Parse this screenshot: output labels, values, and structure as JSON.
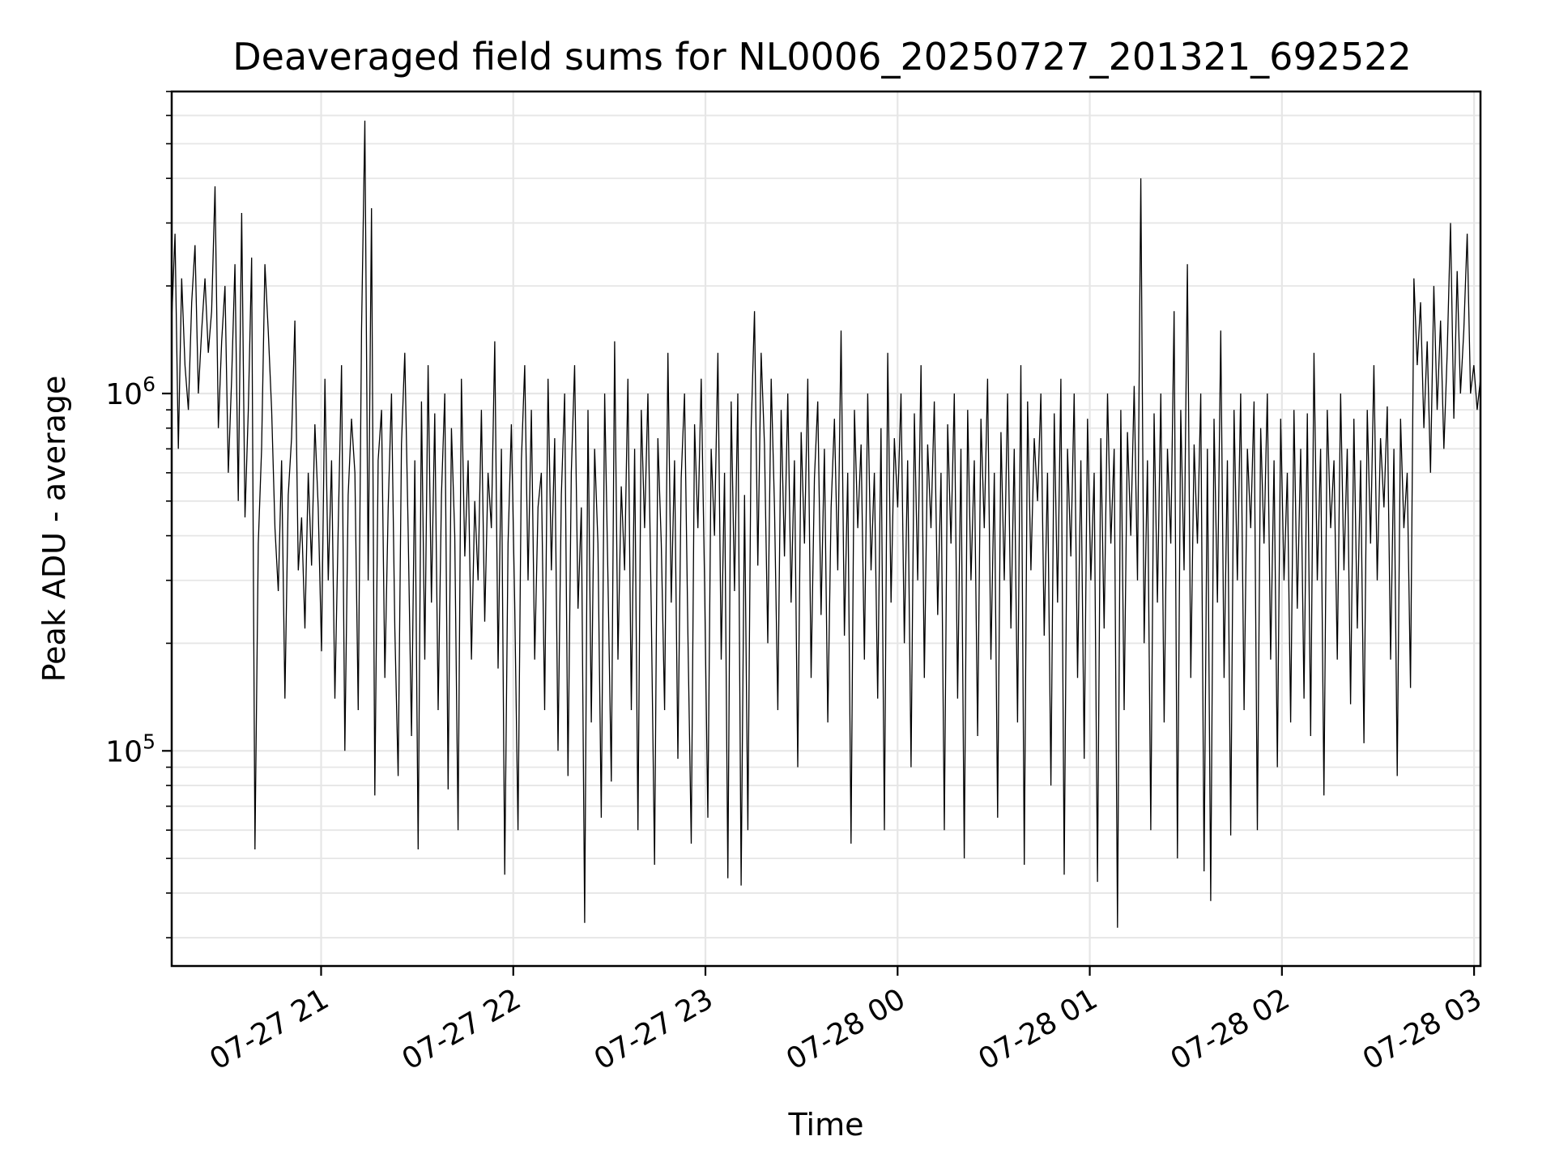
{
  "chart_data": {
    "type": "line",
    "title": "Deaveraged field sums for NL0006_20250727_201321_692522",
    "xlabel": "Time",
    "ylabel": "Peak ADU - average",
    "x_range": [
      "2025-07-27 20:13:21",
      "2025-07-28 03:02:00"
    ],
    "ylim": [
      25000,
      7000000
    ],
    "y_scale": "log",
    "grid": true,
    "legend": "none",
    "line_color": "#000000",
    "x_ticks": [
      {
        "value": "2025-07-27 21:00",
        "label": "07-27 21"
      },
      {
        "value": "2025-07-27 22:00",
        "label": "07-27 22"
      },
      {
        "value": "2025-07-27 23:00",
        "label": "07-27 23"
      },
      {
        "value": "2025-07-28 00:00",
        "label": "07-28 00"
      },
      {
        "value": "2025-07-28 01:00",
        "label": "07-28 01"
      },
      {
        "value": "2025-07-28 02:00",
        "label": "07-28 02"
      },
      {
        "value": "2025-07-28 03:00",
        "label": "07-28 03"
      }
    ],
    "y_ticks": [
      {
        "value": 100000,
        "base": "10",
        "exp": "5"
      },
      {
        "value": 1000000,
        "base": "10",
        "exp": "6"
      }
    ],
    "series": [
      {
        "x_start": "2025-07-27 20:13:21",
        "x_end": "2025-07-28 03:02:00",
        "values": [
          1600000,
          2800000,
          700000,
          2100000,
          1200000,
          900000,
          1800000,
          2600000,
          1000000,
          1500000,
          2100000,
          1300000,
          1700000,
          3800000,
          800000,
          1400000,
          2000000,
          600000,
          1100000,
          2300000,
          500000,
          3200000,
          450000,
          900000,
          2400000,
          53000,
          380000,
          700000,
          2300000,
          1500000,
          900000,
          420000,
          280000,
          650000,
          140000,
          520000,
          750000,
          1600000,
          320000,
          450000,
          220000,
          600000,
          330000,
          820000,
          480000,
          190000,
          1100000,
          300000,
          650000,
          140000,
          420000,
          1200000,
          100000,
          520000,
          850000,
          600000,
          130000,
          1500000,
          5800000,
          300000,
          3300000,
          75000,
          650000,
          900000,
          160000,
          480000,
          1000000,
          220000,
          85000,
          720000,
          1300000,
          420000,
          110000,
          650000,
          53000,
          950000,
          180000,
          1200000,
          260000,
          880000,
          130000,
          520000,
          1000000,
          78000,
          800000,
          400000,
          60000,
          1100000,
          350000,
          650000,
          180000,
          500000,
          300000,
          900000,
          230000,
          600000,
          420000,
          1400000,
          170000,
          700000,
          45000,
          380000,
          820000,
          260000,
          60000,
          650000,
          1200000,
          300000,
          900000,
          180000,
          480000,
          600000,
          130000,
          1100000,
          320000,
          750000,
          100000,
          520000,
          1000000,
          85000,
          600000,
          1200000,
          250000,
          480000,
          33000,
          900000,
          120000,
          700000,
          380000,
          65000,
          1000000,
          300000,
          82000,
          1400000,
          180000,
          550000,
          320000,
          1100000,
          130000,
          700000,
          60000,
          900000,
          420000,
          1000000,
          250000,
          48000,
          750000,
          380000,
          130000,
          1300000,
          260000,
          650000,
          95000,
          580000,
          1000000,
          210000,
          55000,
          820000,
          420000,
          1100000,
          300000,
          65000,
          700000,
          400000,
          1300000,
          180000,
          600000,
          44000,
          950000,
          280000,
          1000000,
          42000,
          520000,
          60000,
          800000,
          1700000,
          330000,
          1300000,
          720000,
          200000,
          1100000,
          480000,
          130000,
          900000,
          350000,
          1000000,
          260000,
          650000,
          90000,
          780000,
          380000,
          1100000,
          160000,
          580000,
          950000,
          240000,
          700000,
          120000,
          480000,
          850000,
          320000,
          1500000,
          210000,
          600000,
          55000,
          900000,
          420000,
          720000,
          180000,
          1000000,
          320000,
          600000,
          140000,
          800000,
          60000,
          1300000,
          260000,
          750000,
          480000,
          1000000,
          200000,
          650000,
          90000,
          880000,
          300000,
          1200000,
          160000,
          720000,
          420000,
          950000,
          240000,
          600000,
          60000,
          820000,
          380000,
          1000000,
          140000,
          700000,
          50000,
          900000,
          300000,
          650000,
          110000,
          850000,
          420000,
          1100000,
          180000,
          600000,
          65000,
          780000,
          300000,
          1000000,
          220000,
          700000,
          120000,
          1200000,
          48000,
          950000,
          320000,
          750000,
          500000,
          1000000,
          210000,
          600000,
          80000,
          880000,
          260000,
          1100000,
          45000,
          700000,
          350000,
          1000000,
          160000,
          650000,
          95000,
          850000,
          300000,
          600000,
          43000,
          750000,
          220000,
          1000000,
          380000,
          700000,
          32000,
          900000,
          130000,
          780000,
          400000,
          1050000,
          300000,
          4000000,
          200000,
          650000,
          60000,
          880000,
          260000,
          1000000,
          120000,
          700000,
          380000,
          1700000,
          50000,
          900000,
          320000,
          2300000,
          160000,
          720000,
          380000,
          1000000,
          46000,
          700000,
          38000,
          850000,
          260000,
          1500000,
          160000,
          650000,
          58000,
          900000,
          300000,
          1000000,
          130000,
          700000,
          420000,
          950000,
          60000,
          800000,
          380000,
          1000000,
          180000,
          650000,
          90000,
          850000,
          300000,
          600000,
          120000,
          900000,
          250000,
          700000,
          140000,
          880000,
          110000,
          1300000,
          300000,
          700000,
          75000,
          900000,
          420000,
          650000,
          180000,
          1000000,
          320000,
          700000,
          135000,
          850000,
          220000,
          650000,
          105000,
          900000,
          380000,
          1200000,
          300000,
          750000,
          480000,
          920000,
          180000,
          700000,
          85000,
          850000,
          420000,
          600000,
          150000,
          2100000,
          1200000,
          1800000,
          800000,
          1400000,
          600000,
          2000000,
          900000,
          1600000,
          700000,
          1300000,
          3000000,
          850000,
          2200000,
          1000000,
          1500000,
          2800000,
          1000000,
          1200000,
          900000,
          1100000
        ]
      }
    ]
  }
}
